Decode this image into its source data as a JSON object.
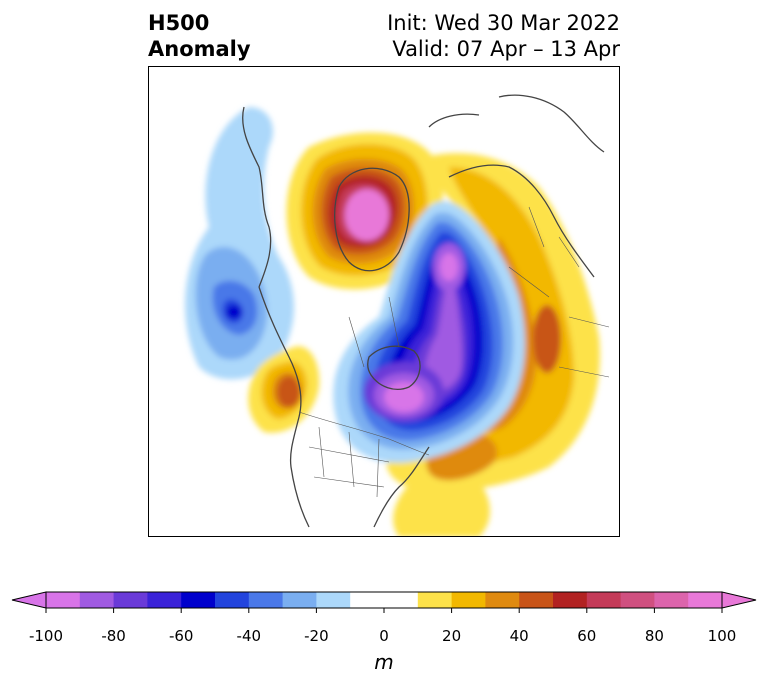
{
  "title": {
    "left_line1": "H500",
    "left_line2": "Anomaly",
    "right_line1": "Init: Wed 30 Mar 2022",
    "right_line2": "Valid: 07 Apr – 13 Apr"
  },
  "colorbar": {
    "unit": "m",
    "extend": "both",
    "ticks": [
      "-100",
      "-80",
      "-60",
      "-40",
      "-20",
      "0",
      "20",
      "40",
      "60",
      "80",
      "100"
    ],
    "levels": [
      -100,
      -90,
      -80,
      -70,
      -60,
      -50,
      -40,
      -30,
      -20,
      -10,
      10,
      20,
      30,
      40,
      50,
      60,
      70,
      80,
      90,
      100
    ],
    "colors": [
      "#d874e8",
      "#a05ae2",
      "#6a3ad8",
      "#3a22d8",
      "#0000cc",
      "#2244dd",
      "#4a78e8",
      "#7aaef0",
      "#acd8fa",
      "#ffffff",
      "#fde24a",
      "#f2b800",
      "#df8a10",
      "#c85418",
      "#b22222",
      "#c43a58",
      "#d05080",
      "#dc64ac",
      "#e878d8"
    ],
    "under_color": "#d874e8",
    "over_color": "#e878d8"
  },
  "map_data": {
    "projection": "north-polar-stereographic",
    "region": "Northern Hemisphere (North America focus)",
    "features": [
      "coastlines",
      "country-borders",
      "us-state-borders",
      "canada-province-borders"
    ],
    "anomalies": [
      {
        "sign": "positive",
        "peak_m": 90,
        "location": "Greenland / Baffin region"
      },
      {
        "sign": "negative",
        "peak_m": -90,
        "location": "Eastern Canada / Hudson Bay"
      },
      {
        "sign": "negative",
        "peak_m": -90,
        "location": "Arctic Ocean / East Siberian sector"
      },
      {
        "sign": "negative",
        "peak_m": -60,
        "location": "North Pacific / Gulf of Alaska"
      },
      {
        "sign": "positive",
        "peak_m": 50,
        "location": "West coast of North America"
      },
      {
        "sign": "positive",
        "peak_m": 50,
        "location": "Siberia / Western Russia"
      },
      {
        "sign": "positive",
        "peak_m": 40,
        "location": "Western North Atlantic"
      }
    ]
  }
}
